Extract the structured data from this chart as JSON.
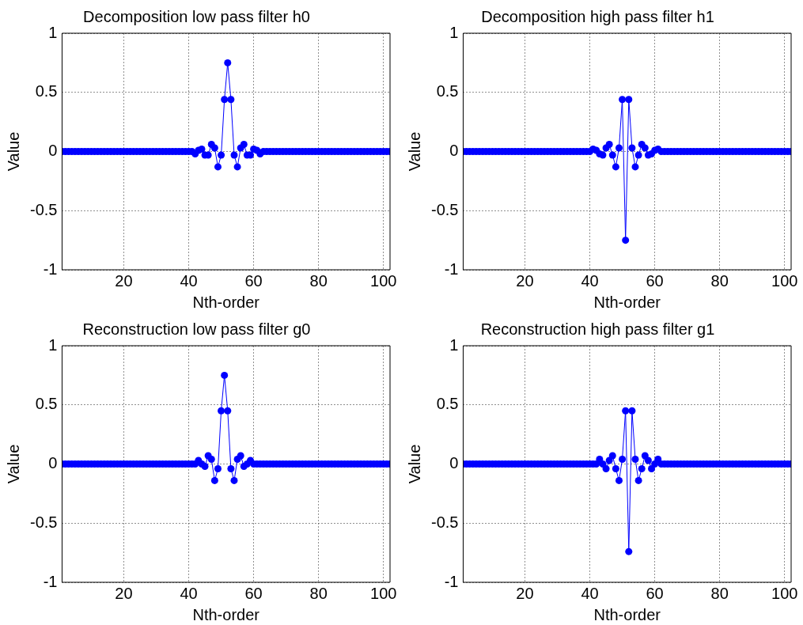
{
  "chart_data": [
    {
      "type": "line",
      "title": "Decomposition low pass filter h0",
      "xlabel": "Nth-order",
      "ylabel": "Value",
      "grid": true,
      "marker": "circle",
      "line_style": "solid",
      "xlim": [
        1,
        102
      ],
      "xticks": [
        20,
        40,
        60,
        80,
        100
      ],
      "ylim": [
        -1,
        1
      ],
      "yticks": [
        -1,
        -0.5,
        0,
        0.5,
        1
      ],
      "x": [
        1,
        2,
        3,
        4,
        5,
        6,
        7,
        8,
        9,
        10,
        11,
        12,
        13,
        14,
        15,
        16,
        17,
        18,
        19,
        20,
        21,
        22,
        23,
        24,
        25,
        26,
        27,
        28,
        29,
        30,
        31,
        32,
        33,
        34,
        35,
        36,
        37,
        38,
        39,
        40,
        41,
        42,
        43,
        44,
        45,
        46,
        47,
        48,
        49,
        50,
        51,
        52,
        53,
        54,
        55,
        56,
        57,
        58,
        59,
        60,
        61,
        62,
        63,
        64,
        65,
        66,
        67,
        68,
        69,
        70,
        71,
        72,
        73,
        74,
        75,
        76,
        77,
        78,
        79,
        80,
        81,
        82,
        83,
        84,
        85,
        86,
        87,
        88,
        89,
        90,
        91,
        92,
        93,
        94,
        95,
        96,
        97,
        98,
        99,
        100,
        101,
        102
      ],
      "series": [
        {
          "color": "#0000ff",
          "values": [
            0,
            0,
            0,
            0,
            0,
            0,
            0,
            0,
            0,
            0,
            0,
            0,
            0,
            0,
            0,
            0,
            0,
            0,
            0,
            0,
            0,
            0,
            0,
            0,
            0,
            0,
            0,
            0,
            0,
            0,
            0,
            0,
            0,
            0,
            0,
            0,
            0,
            0,
            0,
            0,
            0,
            -0.02,
            0.01,
            0.02,
            -0.03,
            -0.03,
            0.06,
            0.03,
            -0.13,
            -0.03,
            0.44,
            0.75,
            0.44,
            -0.03,
            -0.13,
            0.03,
            0.06,
            -0.03,
            -0.03,
            0.02,
            0.01,
            -0.02,
            0,
            0,
            0,
            0,
            0,
            0,
            0,
            0,
            0,
            0,
            0,
            0,
            0,
            0,
            0,
            0,
            0,
            0,
            0,
            0,
            0,
            0,
            0,
            0,
            0,
            0,
            0,
            0,
            0,
            0,
            0,
            0,
            0,
            0,
            0,
            0,
            0,
            0,
            0,
            0
          ]
        }
      ]
    },
    {
      "type": "line",
      "title": "Decomposition high pass filter h1",
      "xlabel": "Nth-order",
      "ylabel": "Value",
      "grid": true,
      "marker": "circle",
      "line_style": "solid",
      "xlim": [
        1,
        102
      ],
      "xticks": [
        20,
        40,
        60,
        80,
        100
      ],
      "ylim": [
        -1,
        1
      ],
      "yticks": [
        -1,
        -0.5,
        0,
        0.5,
        1
      ],
      "x": [
        1,
        2,
        3,
        4,
        5,
        6,
        7,
        8,
        9,
        10,
        11,
        12,
        13,
        14,
        15,
        16,
        17,
        18,
        19,
        20,
        21,
        22,
        23,
        24,
        25,
        26,
        27,
        28,
        29,
        30,
        31,
        32,
        33,
        34,
        35,
        36,
        37,
        38,
        39,
        40,
        41,
        42,
        43,
        44,
        45,
        46,
        47,
        48,
        49,
        50,
        51,
        52,
        53,
        54,
        55,
        56,
        57,
        58,
        59,
        60,
        61,
        62,
        63,
        64,
        65,
        66,
        67,
        68,
        69,
        70,
        71,
        72,
        73,
        74,
        75,
        76,
        77,
        78,
        79,
        80,
        81,
        82,
        83,
        84,
        85,
        86,
        87,
        88,
        89,
        90,
        91,
        92,
        93,
        94,
        95,
        96,
        97,
        98,
        99,
        100,
        101,
        102
      ],
      "series": [
        {
          "color": "#0000ff",
          "values": [
            0,
            0,
            0,
            0,
            0,
            0,
            0,
            0,
            0,
            0,
            0,
            0,
            0,
            0,
            0,
            0,
            0,
            0,
            0,
            0,
            0,
            0,
            0,
            0,
            0,
            0,
            0,
            0,
            0,
            0,
            0,
            0,
            0,
            0,
            0,
            0,
            0,
            0,
            0,
            0,
            0.02,
            0.01,
            -0.02,
            -0.03,
            0.03,
            0.06,
            -0.03,
            -0.13,
            0.03,
            0.44,
            -0.75,
            0.44,
            0.03,
            -0.13,
            -0.03,
            0.06,
            0.03,
            -0.03,
            -0.02,
            0.01,
            0.02,
            0,
            0,
            0,
            0,
            0,
            0,
            0,
            0,
            0,
            0,
            0,
            0,
            0,
            0,
            0,
            0,
            0,
            0,
            0,
            0,
            0,
            0,
            0,
            0,
            0,
            0,
            0,
            0,
            0,
            0,
            0,
            0,
            0,
            0,
            0,
            0,
            0,
            0,
            0,
            0,
            0
          ]
        }
      ]
    },
    {
      "type": "line",
      "title": "Reconstruction low pass filter g0",
      "xlabel": "Nth-order",
      "ylabel": "Value",
      "grid": true,
      "marker": "circle",
      "line_style": "solid",
      "xlim": [
        1,
        102
      ],
      "xticks": [
        20,
        40,
        60,
        80,
        100
      ],
      "ylim": [
        -1,
        1
      ],
      "yticks": [
        -1,
        -0.5,
        0,
        0.5,
        1
      ],
      "x": [
        1,
        2,
        3,
        4,
        5,
        6,
        7,
        8,
        9,
        10,
        11,
        12,
        13,
        14,
        15,
        16,
        17,
        18,
        19,
        20,
        21,
        22,
        23,
        24,
        25,
        26,
        27,
        28,
        29,
        30,
        31,
        32,
        33,
        34,
        35,
        36,
        37,
        38,
        39,
        40,
        41,
        42,
        43,
        44,
        45,
        46,
        47,
        48,
        49,
        50,
        51,
        52,
        53,
        54,
        55,
        56,
        57,
        58,
        59,
        60,
        61,
        62,
        63,
        64,
        65,
        66,
        67,
        68,
        69,
        70,
        71,
        72,
        73,
        74,
        75,
        76,
        77,
        78,
        79,
        80,
        81,
        82,
        83,
        84,
        85,
        86,
        87,
        88,
        89,
        90,
        91,
        92,
        93,
        94,
        95,
        96,
        97,
        98,
        99,
        100,
        101,
        102
      ],
      "series": [
        {
          "color": "#0000ff",
          "values": [
            0,
            0,
            0,
            0,
            0,
            0,
            0,
            0,
            0,
            0,
            0,
            0,
            0,
            0,
            0,
            0,
            0,
            0,
            0,
            0,
            0,
            0,
            0,
            0,
            0,
            0,
            0,
            0,
            0,
            0,
            0,
            0,
            0,
            0,
            0,
            0,
            0,
            0,
            0,
            0,
            0,
            0,
            0.03,
            0,
            -0.02,
            0.07,
            0.04,
            -0.14,
            -0.04,
            0.45,
            0.75,
            0.45,
            -0.04,
            -0.14,
            0.04,
            0.07,
            -0.02,
            0,
            0.03,
            0,
            0,
            0,
            0,
            0,
            0,
            0,
            0,
            0,
            0,
            0,
            0,
            0,
            0,
            0,
            0,
            0,
            0,
            0,
            0,
            0,
            0,
            0,
            0,
            0,
            0,
            0,
            0,
            0,
            0,
            0,
            0,
            0,
            0,
            0,
            0,
            0,
            0,
            0,
            0,
            0,
            0,
            0
          ]
        }
      ]
    },
    {
      "type": "line",
      "title": "Reconstruction high pass filter g1",
      "xlabel": "Nth-order",
      "ylabel": "Value",
      "grid": true,
      "marker": "circle",
      "line_style": "solid",
      "xlim": [
        1,
        102
      ],
      "xticks": [
        20,
        40,
        60,
        80,
        100
      ],
      "ylim": [
        -1,
        1
      ],
      "yticks": [
        -1,
        -0.5,
        0,
        0.5,
        1
      ],
      "x": [
        1,
        2,
        3,
        4,
        5,
        6,
        7,
        8,
        9,
        10,
        11,
        12,
        13,
        14,
        15,
        16,
        17,
        18,
        19,
        20,
        21,
        22,
        23,
        24,
        25,
        26,
        27,
        28,
        29,
        30,
        31,
        32,
        33,
        34,
        35,
        36,
        37,
        38,
        39,
        40,
        41,
        42,
        43,
        44,
        45,
        46,
        47,
        48,
        49,
        50,
        51,
        52,
        53,
        54,
        55,
        56,
        57,
        58,
        59,
        60,
        61,
        62,
        63,
        64,
        65,
        66,
        67,
        68,
        69,
        70,
        71,
        72,
        73,
        74,
        75,
        76,
        77,
        78,
        79,
        80,
        81,
        82,
        83,
        84,
        85,
        86,
        87,
        88,
        89,
        90,
        91,
        92,
        93,
        94,
        95,
        96,
        97,
        98,
        99,
        100,
        101,
        102
      ],
      "series": [
        {
          "color": "#0000ff",
          "values": [
            0,
            0,
            0,
            0,
            0,
            0,
            0,
            0,
            0,
            0,
            0,
            0,
            0,
            0,
            0,
            0,
            0,
            0,
            0,
            0,
            0,
            0,
            0,
            0,
            0,
            0,
            0,
            0,
            0,
            0,
            0,
            0,
            0,
            0,
            0,
            0,
            0,
            0,
            0,
            0,
            0,
            0,
            0.04,
            0,
            -0.04,
            0.03,
            0.07,
            -0.04,
            -0.14,
            0.04,
            0.45,
            -0.74,
            0.45,
            0.04,
            -0.14,
            -0.04,
            0.07,
            0.03,
            -0.04,
            0,
            0.04,
            0,
            0,
            0,
            0,
            0,
            0,
            0,
            0,
            0,
            0,
            0,
            0,
            0,
            0,
            0,
            0,
            0,
            0,
            0,
            0,
            0,
            0,
            0,
            0,
            0,
            0,
            0,
            0,
            0,
            0,
            0,
            0,
            0,
            0,
            0,
            0,
            0,
            0,
            0,
            0,
            0
          ]
        }
      ]
    }
  ]
}
